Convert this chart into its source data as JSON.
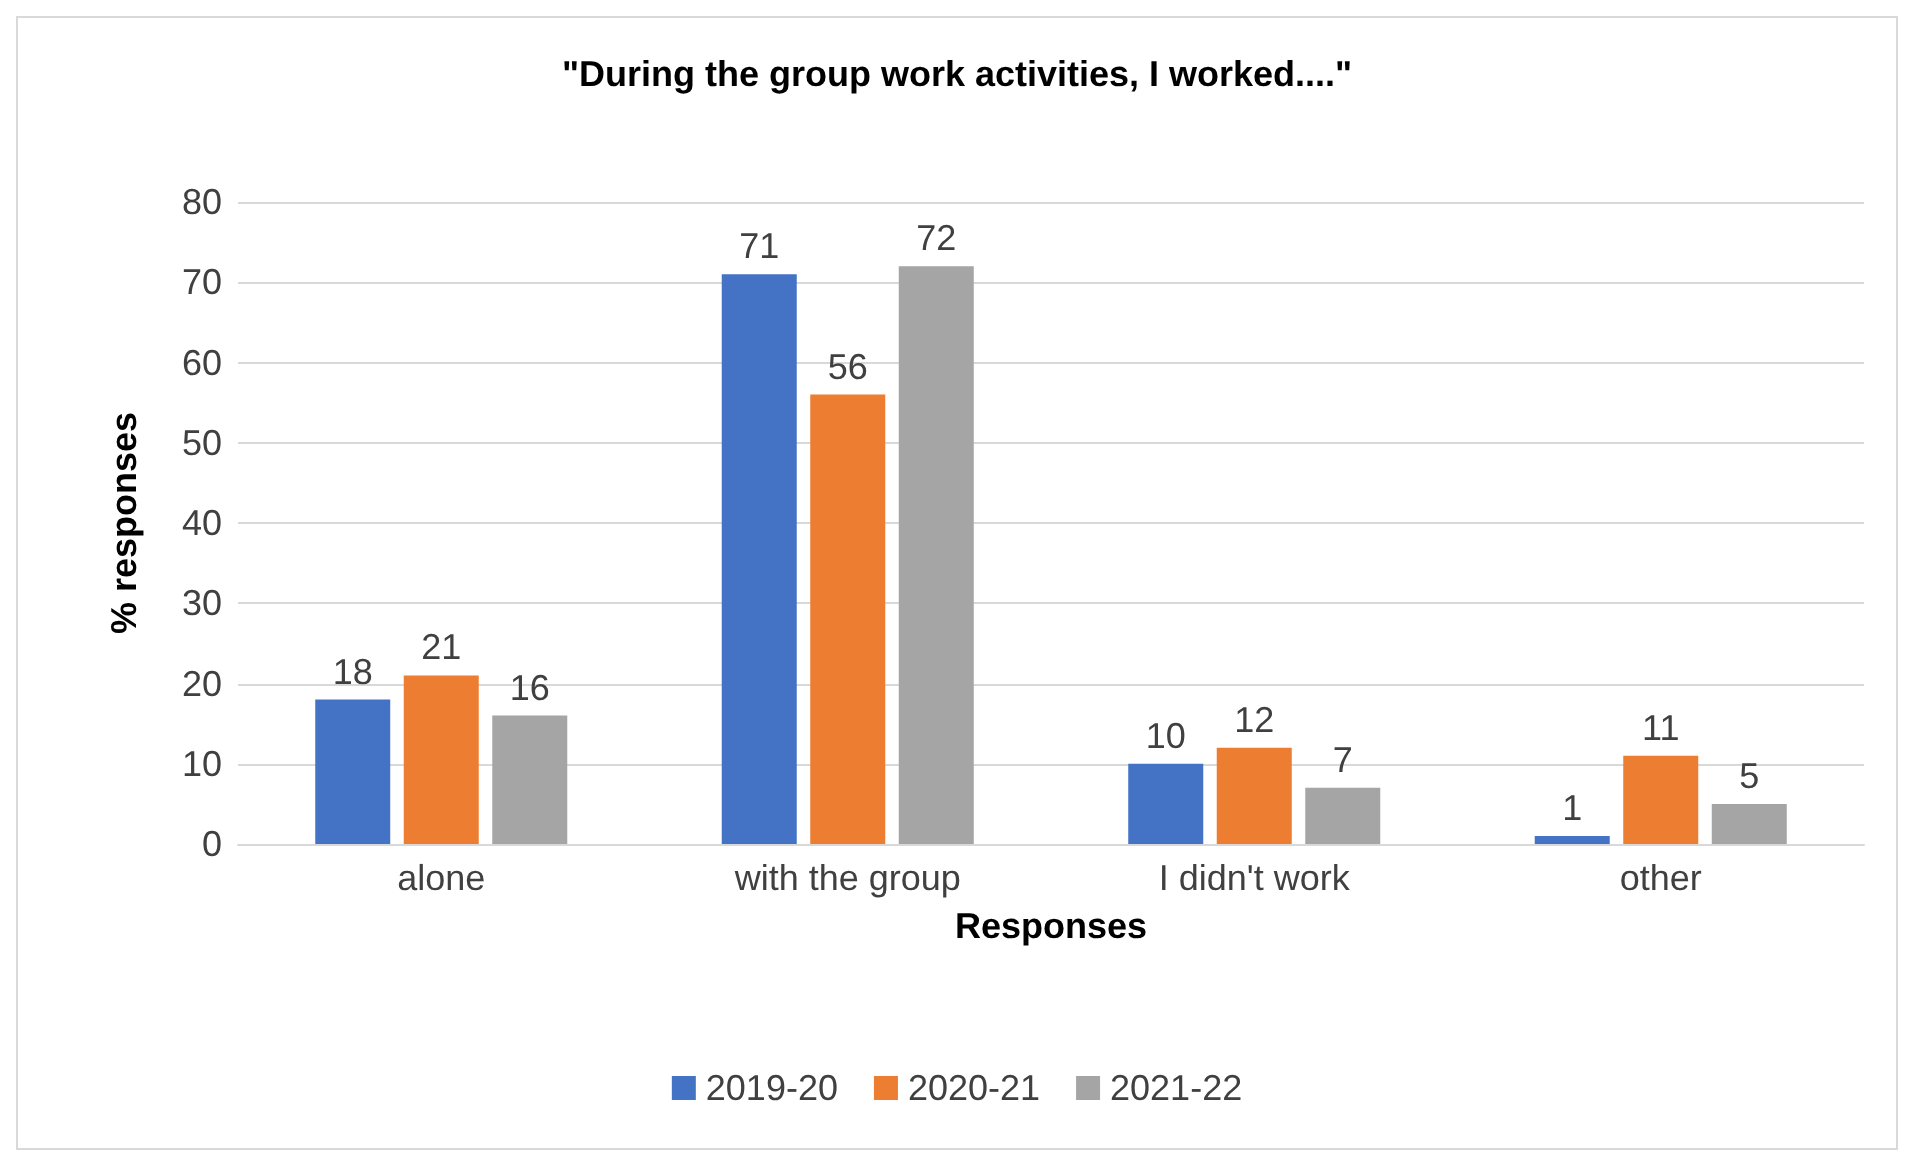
{
  "chart_data": {
    "type": "bar",
    "title": "\"During the group work activities, I worked....\"",
    "xlabel": "Responses",
    "ylabel": "% responses",
    "categories": [
      "alone",
      "with the group",
      "I didn't work",
      "other"
    ],
    "series": [
      {
        "name": "2019-20",
        "color": "#4472c4",
        "values": [
          18,
          71,
          10,
          1
        ]
      },
      {
        "name": "2020-21",
        "color": "#ed7d31",
        "values": [
          21,
          56,
          12,
          11
        ]
      },
      {
        "name": "2021-22",
        "color": "#a5a5a5",
        "values": [
          16,
          72,
          7,
          5
        ]
      }
    ],
    "ylim": [
      0,
      80
    ],
    "yticks": [
      0,
      10,
      20,
      30,
      40,
      50,
      60,
      70,
      80
    ],
    "grid": "y",
    "legend": "bottom",
    "data_labels": true
  }
}
